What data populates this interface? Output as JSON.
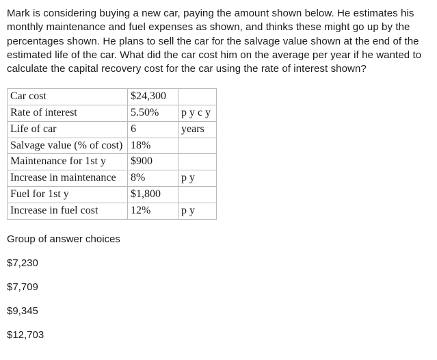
{
  "question": "Mark is considering buying a new car, paying the amount shown below. He estimates his monthly maintenance and fuel expenses as shown, and thinks these might go up by the percentages shown. He plans to sell the car for the salvage value shown at the end of the estimated life of the car. What did the car cost him on the average per year if he wanted to calculate the capital recovery cost for the car using the rate of interest shown?",
  "table": {
    "rows": [
      {
        "label": "Car cost",
        "value": "$24,300",
        "unit": ""
      },
      {
        "label": "Rate of interest",
        "value": "5.50%",
        "unit": "p y c y"
      },
      {
        "label": "Life of car",
        "value": "6",
        "unit": "years"
      },
      {
        "label": "Salvage value (% of cost)",
        "value": "18%",
        "unit": ""
      },
      {
        "label": "Maintenance for 1st y",
        "value": "$900",
        "unit": ""
      },
      {
        "label": "Increase in maintenance",
        "value": "8%",
        "unit": "p y"
      },
      {
        "label": "Fuel for 1st y",
        "value": "$1,800",
        "unit": ""
      },
      {
        "label": "Increase in fuel cost",
        "value": "12%",
        "unit": "p y"
      }
    ],
    "border_color": "#b8b8b8",
    "font_family": "Times New Roman",
    "font_size": 16
  },
  "choices_heading": "Group of answer choices",
  "choices": [
    "$7,230",
    "$7,709",
    "$9,345",
    "$12,703"
  ]
}
